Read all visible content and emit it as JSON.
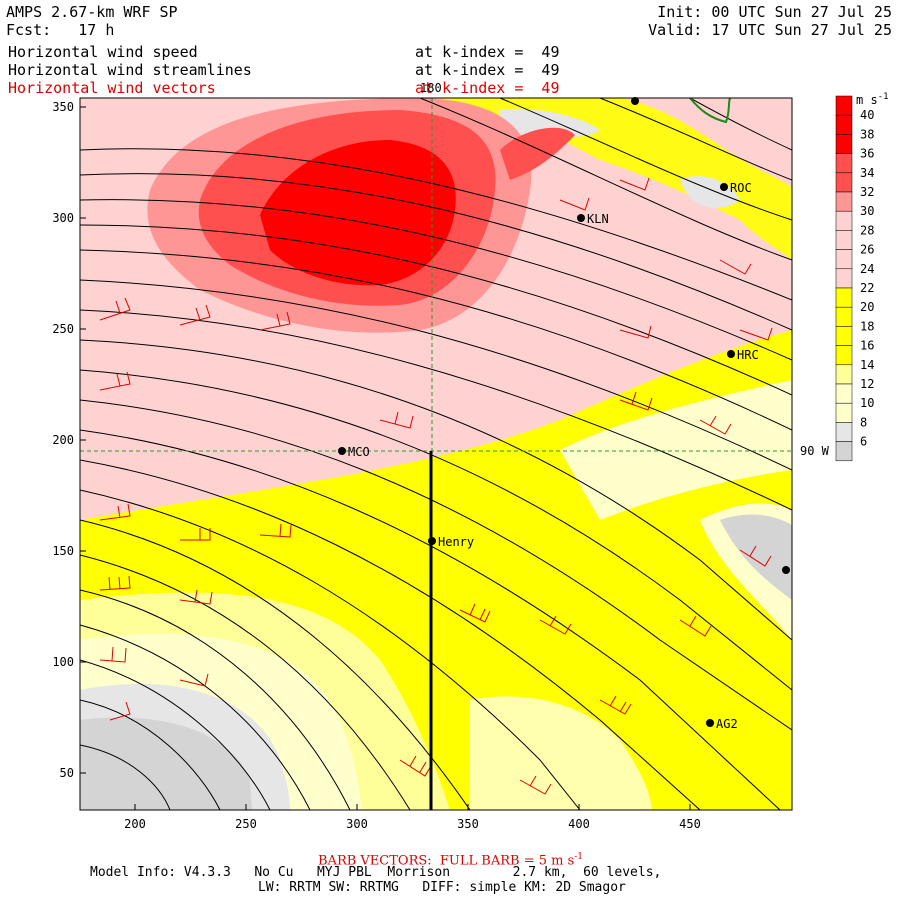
{
  "header": {
    "model": "AMPS 2.67-km WRF SP",
    "forecast": "Fcst:   17 h",
    "init": "Init: 00 UTC Sun 27 Jul 25",
    "valid": "Valid: 17 UTC Sun 27 Jul 25"
  },
  "fields": [
    {
      "name": "Horizontal wind speed",
      "level": "at k-index =  49"
    },
    {
      "name": "Horizontal wind streamlines",
      "level": "at k-index =  49"
    },
    {
      "name": "Horizontal wind vectors",
      "level": "at k-index =  49",
      "color": "#e00000"
    }
  ],
  "map": {
    "x_ticks": [
      "200",
      "250",
      "300",
      "350",
      "400",
      "450"
    ],
    "y_ticks": [
      "350",
      "300",
      "250",
      "200",
      "150",
      "100",
      "50"
    ],
    "lon_label": "180",
    "lat_label": "90 W",
    "stations": [
      {
        "code": "ROC"
      },
      {
        "code": "KLN"
      },
      {
        "code": "HRC"
      },
      {
        "code": "MCO"
      },
      {
        "code": "Henry"
      },
      {
        "code": "AG2"
      },
      {
        "code": ""
      }
    ]
  },
  "colorbar": {
    "unit": "m s-1",
    "labels": [
      "40",
      "38",
      "36",
      "34",
      "32",
      "30",
      "28",
      "26",
      "24",
      "22",
      "20",
      "18",
      "16",
      "14",
      "12",
      "10",
      "8",
      "6"
    ],
    "colors": {
      "gray": "#d4d4d4",
      "light_gray": "#e6e6e6",
      "cream": "#ffffcc",
      "light_yellow": "#ffff99",
      "yellow": "#ffff00",
      "pink": "#ffd2d2",
      "light_red": "#ff9696",
      "red": "#ff5050",
      "dark_red": "#ff0000"
    }
  },
  "footer": {
    "barb_note": "BARB VECTORS:  FULL BARB = 5 m s",
    "barb_unit_sup": "-1",
    "model_info": "Model Info: V4.3.3   No Cu   MYJ PBL  Morrison        2.7 km,  60 levels,",
    "physics": "LW: RRTM SW: RRTMG   DIFF: simple KM: 2D Smagor"
  }
}
